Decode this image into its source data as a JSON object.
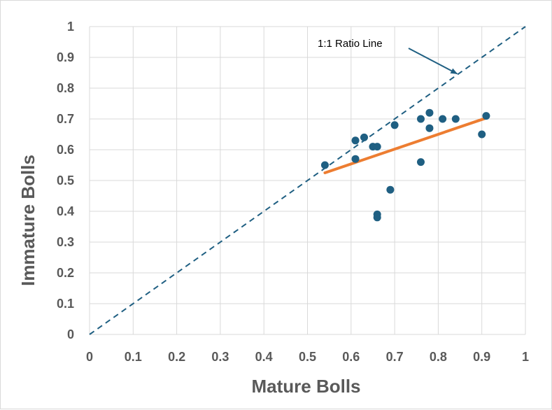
{
  "chart_data": {
    "type": "scatter",
    "xlabel": "Mature Bolls",
    "ylabel": "Immature Bolls",
    "xlim": [
      0,
      1
    ],
    "ylim": [
      0,
      1
    ],
    "xticks": [
      "0",
      "0.1",
      "0.2",
      "0.3",
      "0.4",
      "0.5",
      "0.6",
      "0.7",
      "0.8",
      "0.9",
      "1"
    ],
    "yticks": [
      "0",
      "0.1",
      "0.2",
      "0.3",
      "0.4",
      "0.5",
      "0.6",
      "0.7",
      "0.8",
      "0.9",
      "1"
    ],
    "grid": true,
    "series": [
      {
        "kind": "points",
        "color": "#1f5f82",
        "points": [
          [
            0.54,
            0.55
          ],
          [
            0.61,
            0.63
          ],
          [
            0.61,
            0.57
          ],
          [
            0.63,
            0.64
          ],
          [
            0.65,
            0.61
          ],
          [
            0.66,
            0.61
          ],
          [
            0.66,
            0.39
          ],
          [
            0.66,
            0.38
          ],
          [
            0.69,
            0.47
          ],
          [
            0.7,
            0.68
          ],
          [
            0.76,
            0.7
          ],
          [
            0.76,
            0.56
          ],
          [
            0.78,
            0.72
          ],
          [
            0.78,
            0.67
          ],
          [
            0.81,
            0.7
          ],
          [
            0.84,
            0.7
          ],
          [
            0.9,
            0.65
          ],
          [
            0.91,
            0.71
          ]
        ]
      },
      {
        "kind": "trendline",
        "color": "#ed7d31",
        "points": [
          [
            0.54,
            0.525
          ],
          [
            0.91,
            0.703
          ]
        ]
      },
      {
        "kind": "reference-line",
        "color": "#1f5f82",
        "dashed": true,
        "points": [
          [
            0,
            0
          ],
          [
            1,
            1
          ]
        ]
      }
    ],
    "annotations": [
      {
        "text": "1:1 Ratio Line",
        "points_to": [
          0.84,
          0.84
        ]
      }
    ]
  }
}
